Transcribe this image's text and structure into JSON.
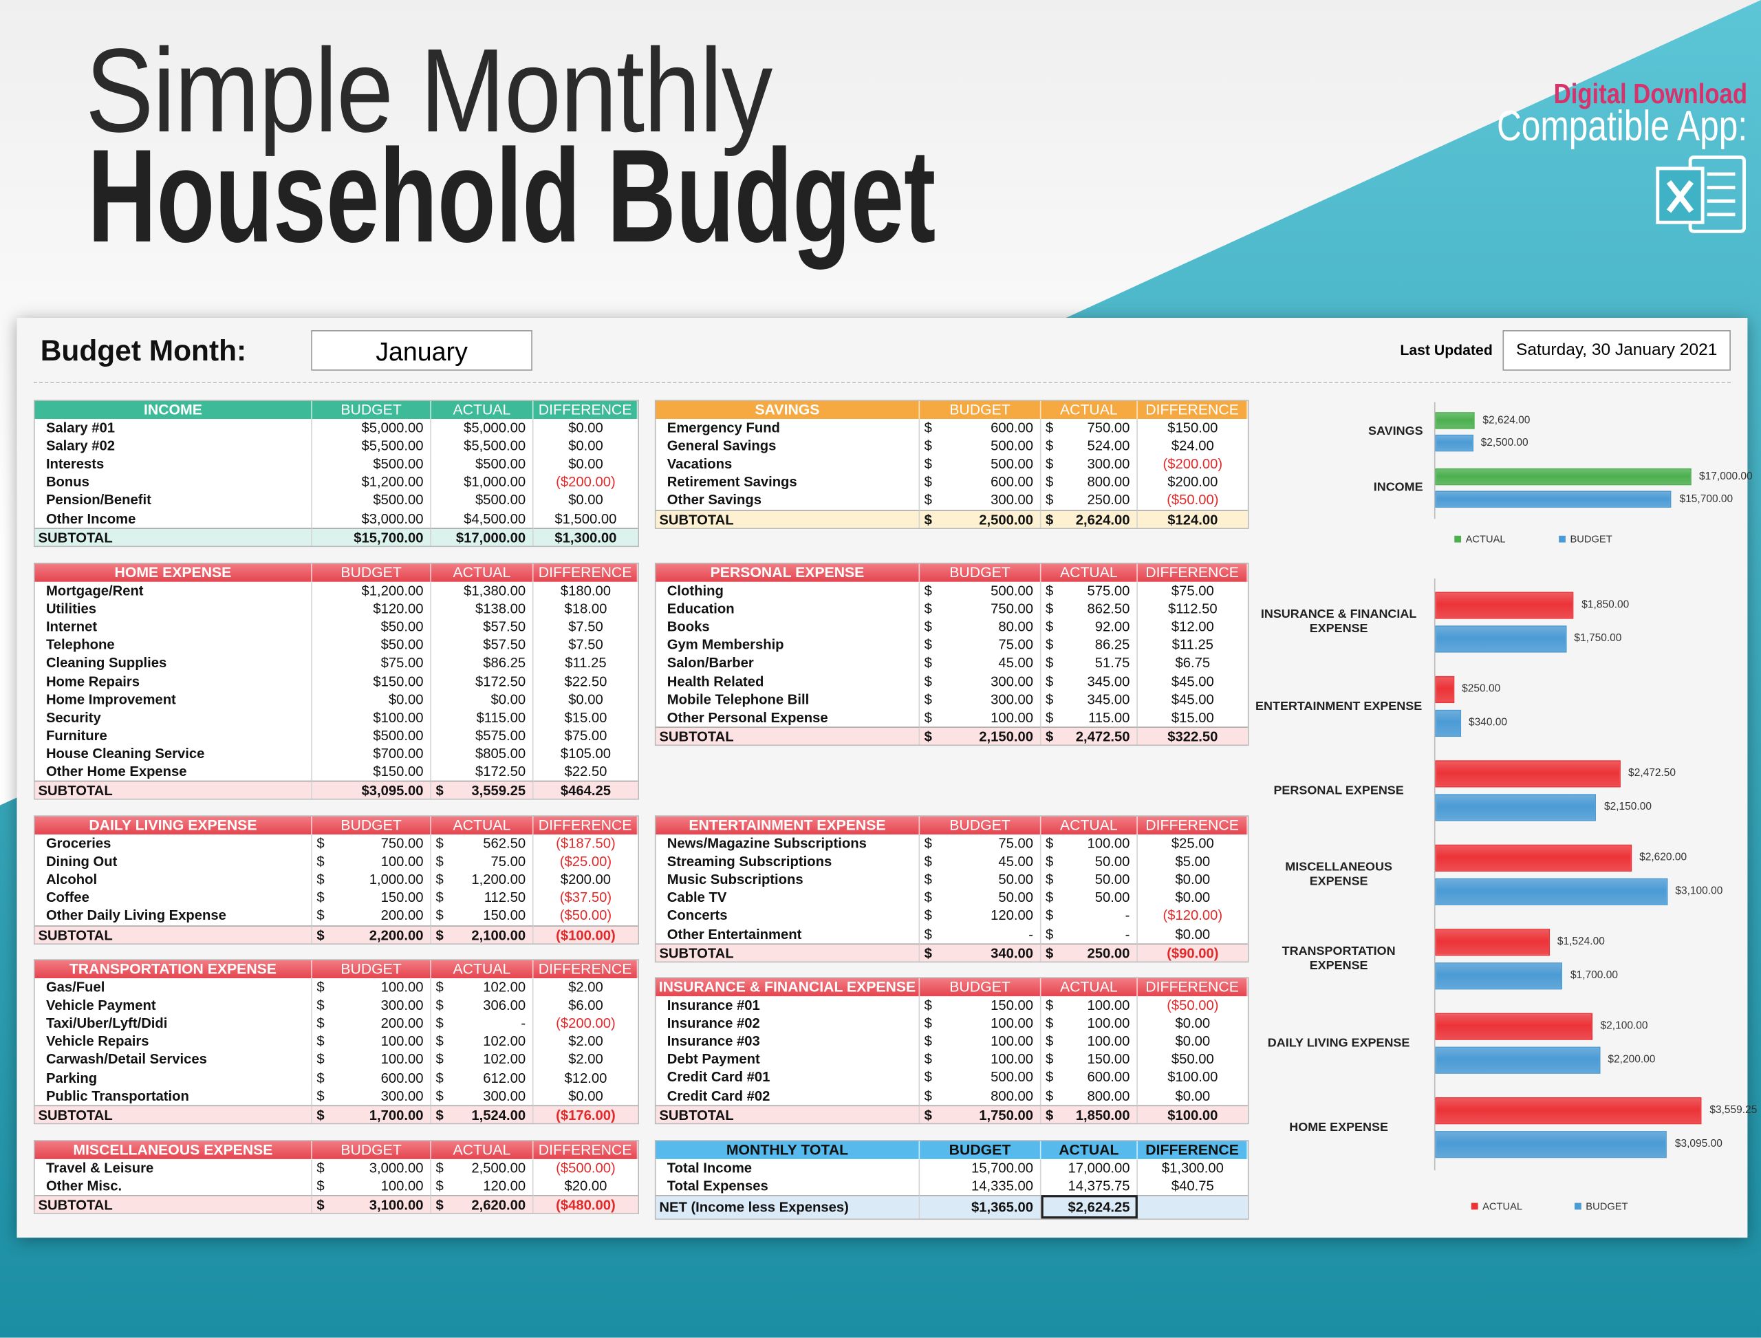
{
  "header": {
    "title_line1": "Simple Monthly",
    "title_line2": "Household Budget",
    "download": "Digital Download",
    "compatible": "Compatible App:"
  },
  "sheet": {
    "month_label": "Budget Month:",
    "month": "January",
    "updated_label": "Last Updated",
    "updated": "Saturday, 30 January 2021"
  },
  "tables": [
    {
      "header": [
        "INCOME",
        "BUDGET",
        "ACTUAL",
        "DIFFERENCE"
      ],
      "rows": [
        [
          "Salary #01",
          "$5,000.00",
          "$5,000.00",
          "$0.00"
        ],
        [
          "Salary #02",
          "$5,500.00",
          "$5,500.00",
          "$0.00"
        ],
        [
          "Interests",
          "$500.00",
          "$500.00",
          "$0.00"
        ],
        [
          "Bonus",
          "$1,200.00",
          "$1,000.00",
          "($200.00)"
        ],
        [
          "Pension/Benefit",
          "$500.00",
          "$500.00",
          "$0.00"
        ],
        [
          "Other Income",
          "$3,000.00",
          "$4,500.00",
          "$1,500.00"
        ]
      ],
      "subtotal": [
        "SUBTOTAL",
        "$15,700.00",
        "$17,000.00",
        "$1,300.00"
      ]
    },
    {
      "header": [
        "SAVINGS",
        "BUDGET",
        "ACTUAL",
        "DIFFERENCE"
      ],
      "rows": [
        [
          "Emergency Fund",
          [
            "$",
            "600.00"
          ],
          [
            "$",
            "750.00"
          ],
          "$150.00"
        ],
        [
          "General Savings",
          [
            "$",
            "500.00"
          ],
          [
            "$",
            "524.00"
          ],
          "$24.00"
        ],
        [
          "Vacations",
          [
            "$",
            "500.00"
          ],
          [
            "$",
            "300.00"
          ],
          "($200.00)"
        ],
        [
          "Retirement Savings",
          [
            "$",
            "600.00"
          ],
          [
            "$",
            "800.00"
          ],
          "$200.00"
        ],
        [
          "Other Savings",
          [
            "$",
            "300.00"
          ],
          [
            "$",
            "250.00"
          ],
          "($50.00)"
        ]
      ],
      "subtotal": [
        "SUBTOTAL",
        [
          "$",
          "2,500.00"
        ],
        [
          "$",
          "2,624.00"
        ],
        "$124.00"
      ]
    },
    {
      "header": [
        "HOME EXPENSE",
        "BUDGET",
        "ACTUAL",
        "DIFFERENCE"
      ],
      "rows": [
        [
          "Mortgage/Rent",
          "$1,200.00",
          "$1,380.00",
          "$180.00"
        ],
        [
          "Utilities",
          "$120.00",
          "$138.00",
          "$18.00"
        ],
        [
          "Internet",
          "$50.00",
          "$57.50",
          "$7.50"
        ],
        [
          "Telephone",
          "$50.00",
          "$57.50",
          "$7.50"
        ],
        [
          "Cleaning Supplies",
          "$75.00",
          "$86.25",
          "$11.25"
        ],
        [
          "Home Repairs",
          "$150.00",
          "$172.50",
          "$22.50"
        ],
        [
          "Home Improvement",
          "$0.00",
          "$0.00",
          "$0.00"
        ],
        [
          "Security",
          "$100.00",
          "$115.00",
          "$15.00"
        ],
        [
          "Furniture",
          "$500.00",
          "$575.00",
          "$75.00"
        ],
        [
          "House Cleaning Service",
          "$700.00",
          "$805.00",
          "$105.00"
        ],
        [
          "Other Home Expense",
          "$150.00",
          "$172.50",
          "$22.50"
        ]
      ],
      "subtotal": [
        "SUBTOTAL",
        "$3,095.00",
        [
          "$",
          "3,559.25"
        ],
        "$464.25"
      ]
    },
    {
      "header": [
        "PERSONAL EXPENSE",
        "BUDGET",
        "ACTUAL",
        "DIFFERENCE"
      ],
      "rows": [
        [
          "Clothing",
          [
            "$",
            "500.00"
          ],
          [
            "$",
            "575.00"
          ],
          "$75.00"
        ],
        [
          "Education",
          [
            "$",
            "750.00"
          ],
          [
            "$",
            "862.50"
          ],
          "$112.50"
        ],
        [
          "Books",
          [
            "$",
            "80.00"
          ],
          [
            "$",
            "92.00"
          ],
          "$12.00"
        ],
        [
          "Gym Membership",
          [
            "$",
            "75.00"
          ],
          [
            "$",
            "86.25"
          ],
          "$11.25"
        ],
        [
          "Salon/Barber",
          [
            "$",
            "45.00"
          ],
          [
            "$",
            "51.75"
          ],
          "$6.75"
        ],
        [
          "Health Related",
          [
            "$",
            "300.00"
          ],
          [
            "$",
            "345.00"
          ],
          "$45.00"
        ],
        [
          "Mobile Telephone Bill",
          [
            "$",
            "300.00"
          ],
          [
            "$",
            "345.00"
          ],
          "$45.00"
        ],
        [
          "Other Personal Expense",
          [
            "$",
            "100.00"
          ],
          [
            "$",
            "115.00"
          ],
          "$15.00"
        ]
      ],
      "subtotal": [
        "SUBTOTAL",
        [
          "$",
          "2,150.00"
        ],
        [
          "$",
          "2,472.50"
        ],
        "$322.50"
      ]
    },
    {
      "header": [
        "DAILY LIVING EXPENSE",
        "BUDGET",
        "ACTUAL",
        "DIFFERENCE"
      ],
      "rows": [
        [
          "Groceries",
          [
            "$",
            "750.00"
          ],
          [
            "$",
            "562.50"
          ],
          "($187.50)"
        ],
        [
          "Dining Out",
          [
            "$",
            "100.00"
          ],
          [
            "$",
            "75.00"
          ],
          "($25.00)"
        ],
        [
          "Alcohol",
          [
            "$",
            "1,000.00"
          ],
          [
            "$",
            "1,200.00"
          ],
          "$200.00"
        ],
        [
          "Coffee",
          [
            "$",
            "150.00"
          ],
          [
            "$",
            "112.50"
          ],
          "($37.50)"
        ],
        [
          "Other Daily Living Expense",
          [
            "$",
            "200.00"
          ],
          [
            "$",
            "150.00"
          ],
          "($50.00)"
        ]
      ],
      "subtotal": [
        "SUBTOTAL",
        [
          "$",
          "2,200.00"
        ],
        [
          "$",
          "2,100.00"
        ],
        "($100.00)"
      ]
    },
    {
      "header": [
        "ENTERTAINMENT EXPENSE",
        "BUDGET",
        "ACTUAL",
        "DIFFERENCE"
      ],
      "rows": [
        [
          "News/Magazine Subscriptions",
          [
            "$",
            "75.00"
          ],
          [
            "$",
            "100.00"
          ],
          "$25.00"
        ],
        [
          "Streaming Subscriptions",
          [
            "$",
            "45.00"
          ],
          [
            "$",
            "50.00"
          ],
          "$5.00"
        ],
        [
          "Music Subscriptions",
          [
            "$",
            "50.00"
          ],
          [
            "$",
            "50.00"
          ],
          "$0.00"
        ],
        [
          "Cable TV",
          [
            "$",
            "50.00"
          ],
          [
            "$",
            "50.00"
          ],
          "$0.00"
        ],
        [
          "Concerts",
          [
            "$",
            "120.00"
          ],
          [
            "$",
            "-"
          ],
          "($120.00)"
        ],
        [
          "Other Entertainment",
          [
            "$",
            "-"
          ],
          [
            "$",
            "-"
          ],
          "$0.00"
        ]
      ],
      "subtotal": [
        "SUBTOTAL",
        [
          "$",
          "340.00"
        ],
        [
          "$",
          "250.00"
        ],
        "($90.00)"
      ]
    },
    {
      "header": [
        "TRANSPORTATION EXPENSE",
        "BUDGET",
        "ACTUAL",
        "DIFFERENCE"
      ],
      "rows": [
        [
          "Gas/Fuel",
          [
            "$",
            "100.00"
          ],
          [
            "$",
            "102.00"
          ],
          "$2.00"
        ],
        [
          "Vehicle Payment",
          [
            "$",
            "300.00"
          ],
          [
            "$",
            "306.00"
          ],
          "$6.00"
        ],
        [
          "Taxi/Uber/Lyft/Didi",
          [
            "$",
            "200.00"
          ],
          [
            "$",
            "-"
          ],
          "($200.00)"
        ],
        [
          "Vehicle Repairs",
          [
            "$",
            "100.00"
          ],
          [
            "$",
            "102.00"
          ],
          "$2.00"
        ],
        [
          "Carwash/Detail Services",
          [
            "$",
            "100.00"
          ],
          [
            "$",
            "102.00"
          ],
          "$2.00"
        ],
        [
          "Parking",
          [
            "$",
            "600.00"
          ],
          [
            "$",
            "612.00"
          ],
          "$12.00"
        ],
        [
          "Public Transportation",
          [
            "$",
            "300.00"
          ],
          [
            "$",
            "300.00"
          ],
          "$0.00"
        ]
      ],
      "subtotal": [
        "SUBTOTAL",
        [
          "$",
          "1,700.00"
        ],
        [
          "$",
          "1,524.00"
        ],
        "($176.00)"
      ]
    },
    {
      "header": [
        "INSURANCE & FINANCIAL EXPENSE",
        "BUDGET",
        "ACTUAL",
        "DIFFERENCE"
      ],
      "rows": [
        [
          "Insurance #01",
          [
            "$",
            "150.00"
          ],
          [
            "$",
            "100.00"
          ],
          "($50.00)"
        ],
        [
          "Insurance #02",
          [
            "$",
            "100.00"
          ],
          [
            "$",
            "100.00"
          ],
          "$0.00"
        ],
        [
          "Insurance #03",
          [
            "$",
            "100.00"
          ],
          [
            "$",
            "100.00"
          ],
          "$0.00"
        ],
        [
          "Debt Payment",
          [
            "$",
            "100.00"
          ],
          [
            "$",
            "150.00"
          ],
          "$50.00"
        ],
        [
          "Credit Card #01",
          [
            "$",
            "500.00"
          ],
          [
            "$",
            "600.00"
          ],
          "$100.00"
        ],
        [
          "Credit Card #02",
          [
            "$",
            "800.00"
          ],
          [
            "$",
            "800.00"
          ],
          "$0.00"
        ]
      ],
      "subtotal": [
        "SUBTOTAL",
        [
          "$",
          "1,750.00"
        ],
        [
          "$",
          "1,850.00"
        ],
        "$100.00"
      ]
    },
    {
      "header": [
        "MISCELLANEOUS EXPENSE",
        "BUDGET",
        "ACTUAL",
        "DIFFERENCE"
      ],
      "rows": [
        [
          "Travel & Leisure",
          [
            "$",
            "3,000.00"
          ],
          [
            "$",
            "2,500.00"
          ],
          "($500.00)"
        ],
        [
          "Other Misc.",
          [
            "$",
            "100.00"
          ],
          [
            "$",
            "120.00"
          ],
          "$20.00"
        ]
      ],
      "subtotal": [
        "SUBTOTAL",
        [
          "$",
          "3,100.00"
        ],
        [
          "$",
          "2,620.00"
        ],
        "($480.00)"
      ]
    },
    {
      "header": [
        "MONTHLY TOTAL",
        "BUDGET",
        "ACTUAL",
        "DIFFERENCE"
      ],
      "rows": [
        [
          "Total Income",
          "15,700.00",
          "17,000.00",
          "$1,300.00"
        ],
        [
          "Total Expenses",
          "14,335.00",
          "14,375.75",
          "$40.75"
        ]
      ],
      "subtotal": [
        "NET (Income less Expenses)",
        "$1,365.00",
        "$2,624.25"
      ]
    }
  ],
  "charts": [
    {
      "type": "bar",
      "categories": [
        "SAVINGS",
        "INCOME"
      ],
      "xlim": [
        0,
        18500
      ],
      "legend": "bottom",
      "series": [
        {
          "name": "ACTUAL",
          "color": "#4cb04f",
          "values": [
            2624,
            17000
          ],
          "value_labels": [
            "$2,624.00",
            "$17,000.00"
          ]
        },
        {
          "name": "BUDGET",
          "color": "#4b9bd5",
          "values": [
            2500,
            15700
          ],
          "value_labels": [
            "$2,500.00",
            "$15,700.00"
          ]
        }
      ]
    },
    {
      "type": "bar",
      "categories": [
        "INSURANCE & FINANCIAL EXPENSE",
        "ENTERTAINMENT EXPENSE",
        "PERSONAL EXPENSE",
        "MISCELLANEOUS EXPENSE",
        "TRANSPORTATION EXPENSE",
        "DAILY LIVING EXPENSE",
        "HOME EXPENSE"
      ],
      "xlim": [
        0,
        3750
      ],
      "legend": "bottom",
      "series": [
        {
          "name": "ACTUAL",
          "color": "#ec3338",
          "values": [
            1850,
            250,
            2472.5,
            2620,
            1524,
            2100,
            3559.25
          ],
          "value_labels": [
            "$1,850.00",
            "$250.00",
            "$2,472.50",
            "$2,620.00",
            "$1,524.00",
            "$2,100.00",
            "$3,559.25"
          ]
        },
        {
          "name": "BUDGET",
          "color": "#4b9bd5",
          "values": [
            1750,
            340,
            2150,
            3100,
            1700,
            2200,
            3095
          ],
          "value_labels": [
            "$1,750.00",
            "$340.00",
            "$2,150.00",
            "$3,100.00",
            "$1,700.00",
            "$2,200.00",
            "$3,095.00"
          ]
        }
      ]
    }
  ]
}
